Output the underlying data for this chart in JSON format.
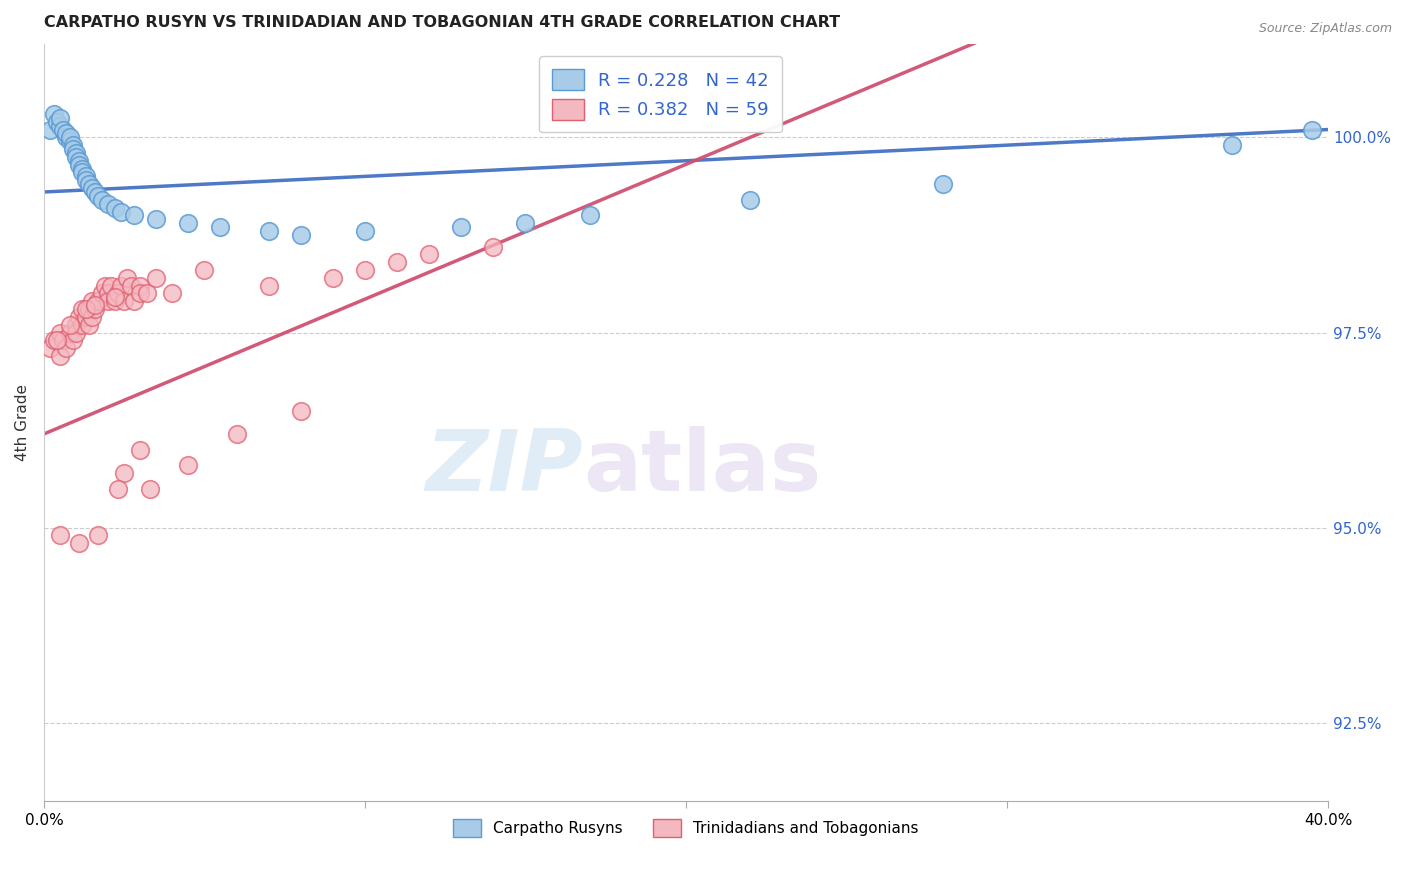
{
  "title": "CARPATHO RUSYN VS TRINIDADIAN AND TOBAGONIAN 4TH GRADE CORRELATION CHART",
  "source": "Source: ZipAtlas.com",
  "ylabel": "4th Grade",
  "right_yticks": [
    100.0,
    97.5,
    95.0,
    92.5
  ],
  "right_ytick_labels": [
    "100.0%",
    "97.5%",
    "95.0%",
    "92.5%"
  ],
  "xmin": 0.0,
  "xmax": 40.0,
  "ymin": 91.5,
  "ymax": 101.2,
  "blue_color": "#a8cce8",
  "blue_edge_color": "#5b9bd5",
  "pink_color": "#f4b8c1",
  "pink_edge_color": "#e06070",
  "blue_line_color": "#4472c4",
  "pink_line_color": "#d05070",
  "legend_blue_R": "R = 0.228",
  "legend_blue_N": "N = 42",
  "legend_pink_R": "R = 0.382",
  "legend_pink_N": "N = 59",
  "watermark_zip": "ZIP",
  "watermark_atlas": "atlas",
  "blue_scatter_x": [
    0.2,
    0.3,
    0.4,
    0.5,
    0.5,
    0.6,
    0.7,
    0.7,
    0.8,
    0.8,
    0.9,
    0.9,
    1.0,
    1.0,
    1.1,
    1.1,
    1.2,
    1.2,
    1.3,
    1.3,
    1.4,
    1.5,
    1.6,
    1.7,
    1.8,
    2.0,
    2.2,
    2.4,
    2.8,
    3.5,
    4.5,
    5.5,
    7.0,
    8.0,
    10.0,
    13.0,
    15.0,
    17.0,
    22.0,
    28.0,
    37.0,
    39.5
  ],
  "blue_scatter_y": [
    100.1,
    100.3,
    100.2,
    100.15,
    100.25,
    100.1,
    100.0,
    100.05,
    99.95,
    100.0,
    99.9,
    99.85,
    99.8,
    99.75,
    99.7,
    99.65,
    99.6,
    99.55,
    99.5,
    99.45,
    99.4,
    99.35,
    99.3,
    99.25,
    99.2,
    99.15,
    99.1,
    99.05,
    99.0,
    98.95,
    98.9,
    98.85,
    98.8,
    98.75,
    98.8,
    98.85,
    98.9,
    99.0,
    99.2,
    99.4,
    99.9,
    100.1
  ],
  "pink_scatter_x": [
    0.2,
    0.3,
    0.5,
    0.5,
    0.6,
    0.7,
    0.8,
    0.9,
    1.0,
    1.0,
    1.1,
    1.2,
    1.2,
    1.3,
    1.4,
    1.4,
    1.5,
    1.5,
    1.6,
    1.7,
    1.8,
    1.9,
    2.0,
    2.0,
    2.1,
    2.2,
    2.3,
    2.4,
    2.5,
    2.6,
    2.7,
    2.8,
    3.0,
    3.0,
    3.2,
    3.5,
    4.0,
    5.0,
    7.0,
    9.0,
    10.0,
    11.0,
    12.0,
    14.0,
    0.4,
    0.8,
    1.3,
    1.6,
    2.2,
    2.5,
    3.3,
    4.5,
    6.0,
    0.5,
    1.1,
    1.7,
    2.3,
    3.0,
    8.0
  ],
  "pink_scatter_y": [
    97.3,
    97.4,
    97.2,
    97.5,
    97.4,
    97.3,
    97.5,
    97.4,
    97.6,
    97.5,
    97.7,
    97.6,
    97.8,
    97.7,
    97.6,
    97.8,
    97.7,
    97.9,
    97.8,
    97.9,
    98.0,
    98.1,
    98.0,
    97.9,
    98.1,
    97.9,
    98.0,
    98.1,
    97.9,
    98.2,
    98.1,
    97.9,
    98.1,
    98.0,
    98.0,
    98.2,
    98.0,
    98.3,
    98.1,
    98.2,
    98.3,
    98.4,
    98.5,
    98.6,
    97.4,
    97.6,
    97.8,
    97.85,
    97.95,
    95.7,
    95.5,
    95.8,
    96.2,
    94.9,
    94.8,
    94.9,
    95.5,
    96.0,
    96.5
  ]
}
